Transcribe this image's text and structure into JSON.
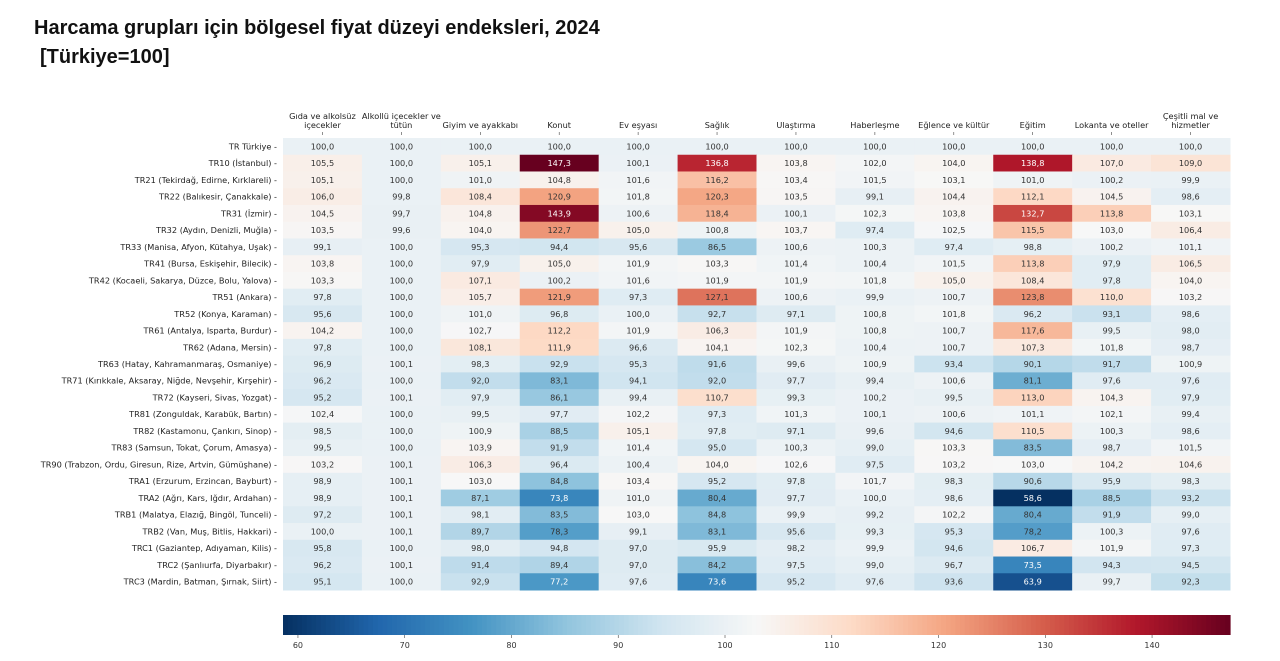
{
  "chart_data": {
    "type": "heatmap",
    "title": "Harcama grupları için bölgesel fiyat düzeyi endeksleri, 2024",
    "subtitle": "[Türkiye=100]",
    "colormap": "RdBu_r",
    "color_range": [
      58.6,
      147.3
    ],
    "colorbar_ticks": [
      60,
      70,
      80,
      90,
      100,
      110,
      120,
      130,
      140
    ],
    "columns": [
      [
        "Gıda ve alkolsüz",
        "içecekler"
      ],
      [
        "Alkollü içecekler ve",
        "tütün"
      ],
      [
        "Giyim ve ayakkabı"
      ],
      [
        "Konut"
      ],
      [
        "Ev eşyası"
      ],
      [
        "Sağlık"
      ],
      [
        "Ulaştırma"
      ],
      [
        "Haberleşme"
      ],
      [
        "Eğlence ve kültür"
      ],
      [
        "Eğitim"
      ],
      [
        "Lokanta ve oteller"
      ],
      [
        "Çeşitli mal ve",
        "hizmetler"
      ]
    ],
    "rows": [
      "TR Türkiye",
      "TR10 (İstanbul)",
      "TR21 (Tekirdağ, Edirne, Kırklareli)",
      "TR22 (Balıkesir, Çanakkale)",
      "TR31 (İzmir)",
      "TR32 (Aydın, Denizli, Muğla)",
      "TR33 (Manisa, Afyon, Kütahya, Uşak)",
      "TR41 (Bursa, Eskişehir, Bilecik)",
      "TR42 (Kocaeli, Sakarya, Düzce, Bolu, Yalova)",
      "TR51 (Ankara)",
      "TR52 (Konya, Karaman)",
      "TR61 (Antalya, Isparta, Burdur)",
      "TR62 (Adana, Mersin)",
      "TR63 (Hatay, Kahramanmaraş, Osmaniye)",
      "TR71 (Kırıkkale, Aksaray, Niğde, Nevşehir, Kırşehir)",
      "TR72 (Kayseri, Sivas, Yozgat)",
      "TR81 (Zonguldak, Karabük, Bartın)",
      "TR82 (Kastamonu, Çankırı, Sinop)",
      "TR83 (Samsun, Tokat, Çorum, Amasya)",
      "TR90 (Trabzon, Ordu, Giresun, Rize, Artvin, Gümüşhane)",
      "TRA1 (Erzurum, Erzincan, Bayburt)",
      "TRA2 (Ağrı, Kars, Iğdır, Ardahan)",
      "TRB1 (Malatya, Elazığ, Bingöl, Tunceli)",
      "TRB2 (Van, Muş, Bitlis, Hakkari)",
      "TRC1 (Gaziantep, Adıyaman, Kilis)",
      "TRC2 (Şanlıurfa, Diyarbakır)",
      "TRC3 (Mardin, Batman, Şırnak, Siirt)"
    ],
    "values": [
      [
        100.0,
        100.0,
        100.0,
        100.0,
        100.0,
        100.0,
        100.0,
        100.0,
        100.0,
        100.0,
        100.0,
        100.0
      ],
      [
        105.5,
        100.0,
        105.1,
        147.3,
        100.1,
        136.8,
        103.8,
        102.0,
        104.0,
        138.8,
        107.0,
        109.0
      ],
      [
        105.1,
        100.0,
        101.0,
        104.8,
        101.6,
        116.2,
        103.4,
        101.5,
        103.1,
        101.0,
        100.2,
        99.9
      ],
      [
        106.0,
        99.8,
        108.4,
        120.9,
        101.8,
        120.3,
        103.5,
        99.1,
        104.4,
        112.1,
        104.5,
        98.6
      ],
      [
        104.5,
        99.7,
        104.8,
        143.9,
        100.6,
        118.4,
        100.1,
        102.3,
        103.8,
        132.7,
        113.8,
        103.1
      ],
      [
        103.5,
        99.6,
        104.0,
        122.7,
        105.0,
        100.8,
        103.7,
        97.4,
        102.5,
        115.5,
        103.0,
        106.4
      ],
      [
        99.1,
        100.0,
        95.3,
        94.4,
        95.6,
        86.5,
        100.6,
        100.3,
        97.4,
        98.8,
        100.2,
        101.1
      ],
      [
        103.8,
        100.0,
        97.9,
        105.0,
        101.9,
        103.3,
        101.4,
        100.4,
        101.5,
        113.8,
        97.9,
        106.5
      ],
      [
        103.3,
        100.0,
        107.1,
        100.2,
        101.6,
        101.9,
        101.9,
        101.8,
        105.0,
        108.4,
        97.8,
        104.0
      ],
      [
        97.8,
        100.0,
        105.7,
        121.9,
        97.3,
        127.1,
        100.6,
        99.9,
        100.7,
        123.8,
        110.0,
        103.2
      ],
      [
        95.6,
        100.0,
        101.0,
        96.8,
        100.0,
        92.7,
        97.1,
        100.8,
        101.8,
        96.2,
        93.1,
        98.6
      ],
      [
        104.2,
        100.0,
        102.7,
        112.2,
        101.9,
        106.3,
        101.9,
        100.8,
        100.7,
        117.6,
        99.5,
        98.0
      ],
      [
        97.8,
        100.0,
        108.1,
        111.9,
        96.6,
        104.1,
        102.3,
        100.4,
        100.7,
        107.3,
        101.8,
        98.7
      ],
      [
        96.9,
        100.1,
        98.3,
        92.9,
        95.3,
        91.6,
        99.6,
        100.9,
        93.4,
        90.1,
        91.7,
        100.9
      ],
      [
        96.2,
        100.0,
        92.0,
        83.1,
        94.1,
        92.0,
        97.7,
        99.4,
        100.6,
        81.1,
        97.6,
        97.6
      ],
      [
        95.2,
        100.1,
        97.9,
        86.1,
        99.4,
        110.7,
        99.3,
        100.2,
        99.5,
        113.0,
        104.3,
        97.9
      ],
      [
        102.4,
        100.0,
        99.5,
        97.7,
        102.2,
        97.3,
        101.3,
        100.1,
        100.6,
        101.1,
        102.1,
        99.4
      ],
      [
        98.5,
        100.0,
        100.9,
        88.5,
        105.1,
        97.8,
        97.1,
        99.6,
        94.6,
        110.5,
        100.3,
        98.6
      ],
      [
        99.5,
        100.0,
        103.9,
        91.9,
        101.4,
        95.0,
        100.3,
        99.0,
        103.3,
        83.5,
        98.7,
        101.5
      ],
      [
        103.2,
        100.1,
        106.3,
        96.4,
        100.4,
        104.0,
        102.6,
        97.5,
        103.2,
        103.0,
        104.2,
        104.6
      ],
      [
        98.9,
        100.1,
        103.0,
        84.8,
        103.4,
        95.2,
        97.8,
        101.7,
        98.3,
        90.6,
        95.9,
        98.3
      ],
      [
        98.9,
        100.1,
        87.1,
        73.8,
        101.0,
        80.4,
        97.7,
        100.0,
        98.6,
        58.6,
        88.5,
        93.2
      ],
      [
        97.2,
        100.1,
        98.1,
        83.5,
        103.0,
        84.8,
        99.9,
        99.2,
        102.2,
        80.4,
        91.9,
        99.0
      ],
      [
        100.0,
        100.1,
        89.7,
        78.3,
        99.1,
        83.1,
        95.6,
        99.3,
        95.3,
        78.2,
        100.3,
        97.6
      ],
      [
        95.8,
        100.0,
        98.0,
        94.8,
        97.0,
        95.9,
        98.2,
        99.9,
        94.6,
        106.7,
        101.9,
        97.3
      ],
      [
        96.2,
        100.1,
        91.4,
        89.4,
        97.0,
        84.2,
        97.5,
        99.0,
        96.7,
        73.5,
        94.3,
        94.5
      ],
      [
        95.1,
        100.0,
        92.9,
        77.2,
        97.6,
        73.6,
        95.2,
        97.6,
        93.6,
        63.9,
        99.7,
        92.3
      ]
    ]
  }
}
